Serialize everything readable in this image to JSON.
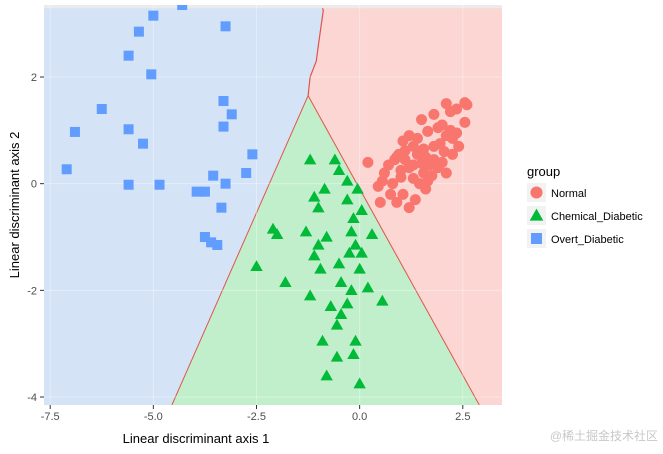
{
  "watermark": "@稀土掘金技术社区",
  "chart_data": {
    "type": "scatter",
    "xlabel": "Linear discriminant axis 1",
    "ylabel": "Linear discriminant axis 2",
    "xlim": [
      -7.65,
      3.45
    ],
    "ylim": [
      -4.15,
      3.35
    ],
    "xticks": [
      -7.5,
      -5.0,
      -2.5,
      0.0,
      2.5
    ],
    "xtick_labels": [
      "-7.5",
      "-5.0",
      "-2.5",
      "0.0",
      "2.5"
    ],
    "yticks": [
      -4,
      -2,
      0,
      2
    ],
    "ytick_labels": [
      "-4",
      "-2",
      "0",
      "2"
    ],
    "grid": false,
    "legend": {
      "title": "group",
      "position": "right",
      "entries": [
        {
          "label": "Normal",
          "color": "#F8766D",
          "shape": "circle"
        },
        {
          "label": "Chemical_Diabetic",
          "color": "#00BA38",
          "shape": "triangle"
        },
        {
          "label": "Overt_Diabetic",
          "color": "#619CFF",
          "shape": "square"
        }
      ]
    },
    "regions": [
      {
        "group": "Overt_Diabetic",
        "fill": "#d5e3f7"
      },
      {
        "group": "Normal",
        "fill": "#fbd6d3"
      },
      {
        "group": "Chemical_Diabetic",
        "fill": "#c1efcb"
      }
    ],
    "boundary_color": "#e0554b",
    "series": [
      {
        "name": "Normal",
        "color": "#F8766D",
        "shape": "circle",
        "points": [
          [
            2.1,
            1.5
          ],
          [
            2.55,
            1.52
          ],
          [
            2.6,
            1.48
          ],
          [
            2.35,
            1.4
          ],
          [
            2.2,
            1.35
          ],
          [
            2.55,
            1.15
          ],
          [
            1.8,
            1.3
          ],
          [
            1.5,
            1.2
          ],
          [
            2.0,
            1.1
          ],
          [
            1.9,
            1.05
          ],
          [
            2.1,
            0.9
          ],
          [
            1.65,
            0.98
          ],
          [
            1.4,
            0.85
          ],
          [
            1.2,
            0.9
          ],
          [
            1.05,
            0.8
          ],
          [
            2.2,
            1.0
          ],
          [
            2.35,
            0.95
          ],
          [
            2.25,
            0.85
          ],
          [
            1.95,
            0.75
          ],
          [
            1.8,
            0.7
          ],
          [
            1.55,
            0.65
          ],
          [
            1.3,
            0.7
          ],
          [
            1.1,
            0.62
          ],
          [
            0.95,
            0.55
          ],
          [
            0.9,
            0.5
          ],
          [
            1.6,
            0.5
          ],
          [
            1.8,
            0.45
          ],
          [
            2.05,
            0.6
          ],
          [
            2.25,
            0.55
          ],
          [
            1.5,
            0.38
          ],
          [
            1.3,
            0.35
          ],
          [
            1.7,
            0.35
          ],
          [
            1.9,
            0.3
          ],
          [
            1.2,
            0.3
          ],
          [
            1.0,
            0.25
          ],
          [
            1.55,
            0.2
          ],
          [
            1.75,
            0.15
          ],
          [
            2.1,
            0.2
          ],
          [
            1.3,
            0.1
          ],
          [
            1.65,
            0.05
          ],
          [
            2.0,
            0.4
          ],
          [
            1.4,
            0.55
          ],
          [
            0.7,
            0.35
          ],
          [
            0.6,
            0.2
          ],
          [
            0.55,
            0.05
          ],
          [
            0.8,
            0.0
          ],
          [
            1.0,
            0.12
          ],
          [
            0.45,
            -0.05
          ],
          [
            0.75,
            -0.2
          ],
          [
            1.05,
            -0.2
          ],
          [
            1.35,
            -0.3
          ],
          [
            0.5,
            -0.35
          ],
          [
            0.9,
            -0.35
          ],
          [
            1.2,
            -0.45
          ],
          [
            0.2,
            0.4
          ],
          [
            1.6,
            -0.1
          ],
          [
            1.45,
            0.0
          ],
          [
            0.85,
            0.45
          ],
          [
            1.1,
            0.45
          ],
          [
            2.4,
            0.7
          ]
        ]
      },
      {
        "name": "Chemical_Diabetic",
        "color": "#00BA38",
        "shape": "triangle",
        "points": [
          [
            -1.2,
            0.45
          ],
          [
            -0.6,
            0.45
          ],
          [
            -0.5,
            0.25
          ],
          [
            -0.3,
            0.05
          ],
          [
            -0.85,
            -0.1
          ],
          [
            -1.1,
            -0.25
          ],
          [
            -0.05,
            -0.1
          ],
          [
            -0.3,
            -0.3
          ],
          [
            -1.0,
            -0.45
          ],
          [
            -0.15,
            -0.65
          ],
          [
            0.05,
            -0.5
          ],
          [
            -2.1,
            -0.85
          ],
          [
            -1.3,
            -0.9
          ],
          [
            -0.2,
            -0.9
          ],
          [
            0.3,
            -0.95
          ],
          [
            -0.8,
            -1.0
          ],
          [
            -1.0,
            -1.15
          ],
          [
            -0.1,
            -1.15
          ],
          [
            -0.25,
            -1.3
          ],
          [
            0.05,
            -1.3
          ],
          [
            -1.1,
            -1.35
          ],
          [
            -0.5,
            -1.5
          ],
          [
            -0.95,
            -1.6
          ],
          [
            0.0,
            -1.6
          ],
          [
            -2.5,
            -1.55
          ],
          [
            -1.8,
            -1.85
          ],
          [
            -0.45,
            -1.85
          ],
          [
            0.2,
            -1.95
          ],
          [
            -0.2,
            -2.0
          ],
          [
            -1.2,
            -2.1
          ],
          [
            -0.3,
            -2.25
          ],
          [
            -0.7,
            -2.3
          ],
          [
            0.55,
            -2.2
          ],
          [
            -0.45,
            -2.45
          ],
          [
            -0.55,
            -2.65
          ],
          [
            -0.1,
            -2.95
          ],
          [
            -0.9,
            -2.95
          ],
          [
            -0.55,
            -3.25
          ],
          [
            -0.15,
            -3.2
          ],
          [
            -0.8,
            -3.6
          ],
          [
            0.0,
            -3.75
          ],
          [
            -2.0,
            -0.95
          ]
        ]
      },
      {
        "name": "Overt_Diabetic",
        "color": "#619CFF",
        "shape": "square",
        "points": [
          [
            -4.3,
            3.35
          ],
          [
            -5.0,
            3.15
          ],
          [
            -3.25,
            2.95
          ],
          [
            -5.35,
            2.85
          ],
          [
            -5.6,
            2.4
          ],
          [
            -5.05,
            2.05
          ],
          [
            -3.3,
            1.55
          ],
          [
            -6.25,
            1.4
          ],
          [
            -3.1,
            1.3
          ],
          [
            -6.9,
            0.97
          ],
          [
            -5.6,
            1.02
          ],
          [
            -3.3,
            1.07
          ],
          [
            -5.25,
            0.75
          ],
          [
            -2.6,
            0.55
          ],
          [
            -7.1,
            0.27
          ],
          [
            -2.75,
            0.2
          ],
          [
            -3.55,
            0.15
          ],
          [
            -3.25,
            0.0
          ],
          [
            -5.6,
            -0.02
          ],
          [
            -4.85,
            -0.02
          ],
          [
            -3.95,
            -0.15
          ],
          [
            -3.75,
            -0.15
          ],
          [
            -3.35,
            -0.45
          ],
          [
            -3.75,
            -1.0
          ],
          [
            -3.6,
            -1.1
          ],
          [
            -3.45,
            -1.15
          ]
        ]
      }
    ]
  }
}
